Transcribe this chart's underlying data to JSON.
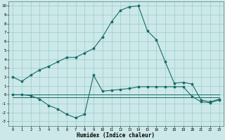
{
  "xlabel": "Humidex (Indice chaleur)",
  "bg_color": "#cce8e8",
  "grid_color": "#99cccc",
  "line_color": "#1a6b6b",
  "xlim": [
    -0.5,
    23.5
  ],
  "ylim": [
    -3.5,
    10.5
  ],
  "xticks": [
    0,
    1,
    2,
    3,
    4,
    5,
    6,
    7,
    8,
    9,
    10,
    11,
    12,
    13,
    14,
    15,
    16,
    17,
    18,
    19,
    20,
    21,
    22,
    23
  ],
  "yticks": [
    -3,
    -2,
    -1,
    0,
    1,
    2,
    3,
    4,
    5,
    6,
    7,
    8,
    9,
    10
  ],
  "line1_x": [
    0,
    1,
    2,
    3,
    4,
    5,
    6,
    7,
    8,
    9,
    10,
    11,
    12,
    13,
    14,
    15,
    16,
    17,
    18,
    19,
    20,
    21,
    22,
    23
  ],
  "line1_y": [
    2.0,
    1.5,
    2.2,
    2.8,
    3.2,
    3.7,
    4.2,
    4.2,
    4.7,
    5.2,
    6.5,
    8.2,
    9.5,
    9.9,
    10.0,
    7.2,
    6.2,
    3.7,
    1.3,
    1.4,
    1.2,
    -0.6,
    -0.8,
    -0.5
  ],
  "line2_x": [
    0,
    1,
    2,
    3,
    4,
    5,
    6,
    7,
    8,
    9,
    10,
    11,
    12,
    13,
    14,
    15,
    16,
    17,
    18,
    19,
    20,
    21,
    22,
    23
  ],
  "line2_y": [
    0.0,
    0.0,
    -0.1,
    -0.5,
    -1.2,
    -1.6,
    -2.2,
    -2.6,
    -2.2,
    2.2,
    0.4,
    0.5,
    0.6,
    0.7,
    0.9,
    0.9,
    0.9,
    0.9,
    0.9,
    0.9,
    -0.2,
    -0.8,
    -0.9,
    -0.6
  ],
  "line3_x": [
    0,
    23
  ],
  "line3_y": [
    0.0,
    0.0
  ],
  "line4_x": [
    0,
    23
  ],
  "line4_y": [
    -0.3,
    -0.3
  ]
}
